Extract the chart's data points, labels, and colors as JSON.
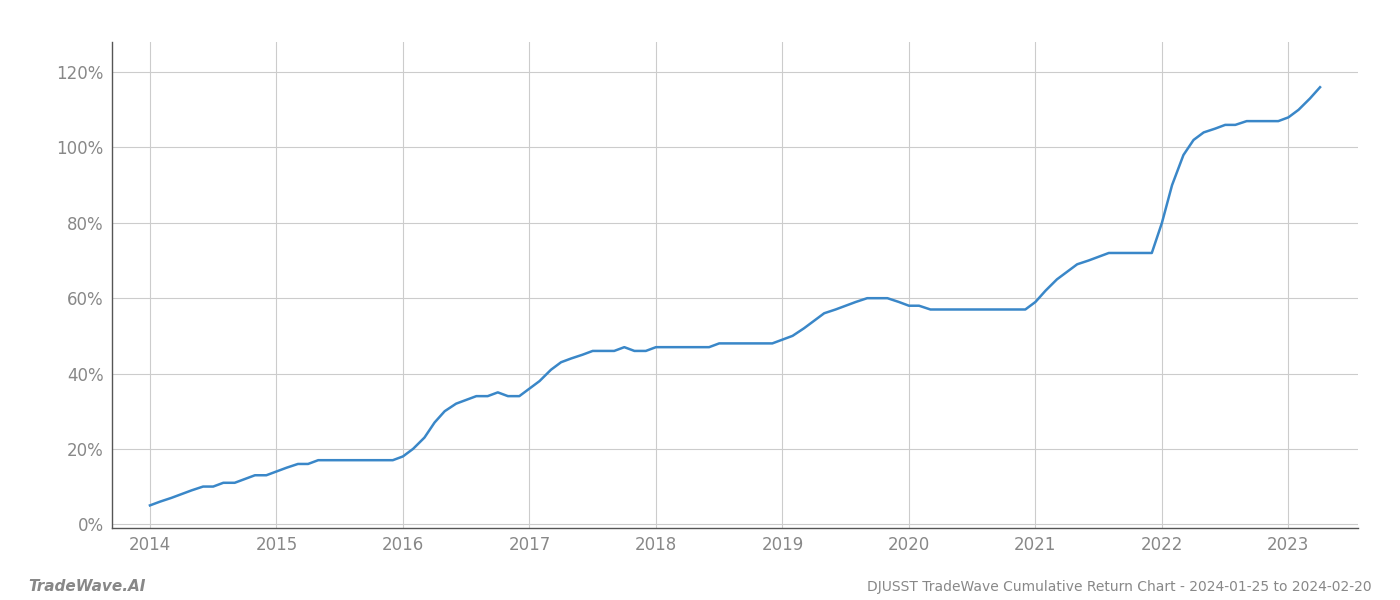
{
  "title": "DJUSST TradeWave Cumulative Return Chart - 2024-01-25 to 2024-02-20",
  "watermark": "TradeWave.AI",
  "line_color": "#3a87c8",
  "line_width": 1.8,
  "background_color": "#ffffff",
  "grid_color": "#cccccc",
  "text_color": "#888888",
  "xlim": [
    2013.7,
    2023.55
  ],
  "ylim": [
    -0.01,
    1.28
  ],
  "yticks": [
    0.0,
    0.2,
    0.4,
    0.6,
    0.8,
    1.0,
    1.2
  ],
  "ytick_labels": [
    "0%",
    "20%",
    "40%",
    "60%",
    "80%",
    "100%",
    "120%"
  ],
  "xticks": [
    2014,
    2015,
    2016,
    2017,
    2018,
    2019,
    2020,
    2021,
    2022,
    2023
  ],
  "x": [
    2014.0,
    2014.08,
    2014.17,
    2014.25,
    2014.33,
    2014.42,
    2014.5,
    2014.58,
    2014.67,
    2014.75,
    2014.83,
    2014.92,
    2015.0,
    2015.08,
    2015.17,
    2015.25,
    2015.33,
    2015.42,
    2015.5,
    2015.58,
    2015.67,
    2015.75,
    2015.83,
    2015.92,
    2016.0,
    2016.08,
    2016.17,
    2016.25,
    2016.33,
    2016.42,
    2016.5,
    2016.58,
    2016.67,
    2016.75,
    2016.83,
    2016.92,
    2017.0,
    2017.08,
    2017.17,
    2017.25,
    2017.33,
    2017.42,
    2017.5,
    2017.58,
    2017.67,
    2017.75,
    2017.83,
    2017.92,
    2018.0,
    2018.08,
    2018.17,
    2018.25,
    2018.33,
    2018.42,
    2018.5,
    2018.58,
    2018.67,
    2018.75,
    2018.83,
    2018.92,
    2019.0,
    2019.08,
    2019.17,
    2019.25,
    2019.33,
    2019.42,
    2019.5,
    2019.58,
    2019.67,
    2019.75,
    2019.83,
    2019.92,
    2020.0,
    2020.08,
    2020.17,
    2020.25,
    2020.33,
    2020.42,
    2020.5,
    2020.58,
    2020.67,
    2020.75,
    2020.83,
    2020.92,
    2021.0,
    2021.08,
    2021.17,
    2021.25,
    2021.33,
    2021.42,
    2021.5,
    2021.58,
    2021.67,
    2021.75,
    2021.83,
    2021.92,
    2022.0,
    2022.08,
    2022.17,
    2022.25,
    2022.33,
    2022.42,
    2022.5,
    2022.58,
    2022.67,
    2022.75,
    2022.83,
    2022.92,
    2023.0,
    2023.08,
    2023.17,
    2023.25
  ],
  "y": [
    0.05,
    0.06,
    0.07,
    0.08,
    0.09,
    0.1,
    0.1,
    0.11,
    0.11,
    0.12,
    0.13,
    0.13,
    0.14,
    0.15,
    0.16,
    0.16,
    0.17,
    0.17,
    0.17,
    0.17,
    0.17,
    0.17,
    0.17,
    0.17,
    0.18,
    0.2,
    0.23,
    0.27,
    0.3,
    0.32,
    0.33,
    0.34,
    0.34,
    0.35,
    0.34,
    0.34,
    0.36,
    0.38,
    0.41,
    0.43,
    0.44,
    0.45,
    0.46,
    0.46,
    0.46,
    0.47,
    0.46,
    0.46,
    0.47,
    0.47,
    0.47,
    0.47,
    0.47,
    0.47,
    0.48,
    0.48,
    0.48,
    0.48,
    0.48,
    0.48,
    0.49,
    0.5,
    0.52,
    0.54,
    0.56,
    0.57,
    0.58,
    0.59,
    0.6,
    0.6,
    0.6,
    0.59,
    0.58,
    0.58,
    0.57,
    0.57,
    0.57,
    0.57,
    0.57,
    0.57,
    0.57,
    0.57,
    0.57,
    0.57,
    0.59,
    0.62,
    0.65,
    0.67,
    0.69,
    0.7,
    0.71,
    0.72,
    0.72,
    0.72,
    0.72,
    0.72,
    0.8,
    0.9,
    0.98,
    1.02,
    1.04,
    1.05,
    1.06,
    1.06,
    1.07,
    1.07,
    1.07,
    1.07,
    1.08,
    1.1,
    1.13,
    1.16
  ]
}
